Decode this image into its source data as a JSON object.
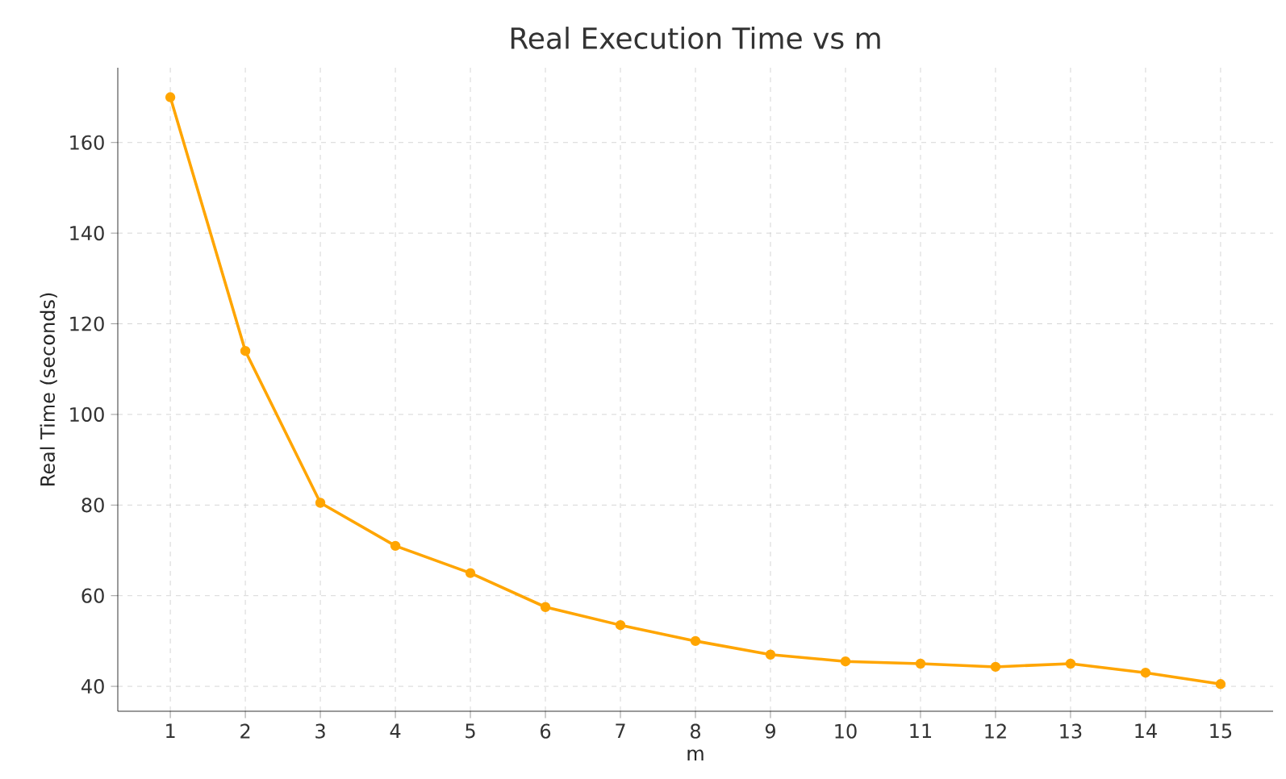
{
  "chart_data": {
    "type": "line",
    "title": "Real Execution Time vs m",
    "xlabel": "m",
    "ylabel": "Real Time (seconds)",
    "x": [
      1,
      2,
      3,
      4,
      5,
      6,
      7,
      8,
      9,
      10,
      11,
      12,
      13,
      14,
      15
    ],
    "series": [
      {
        "color": "#ffa500",
        "values": [
          170,
          114,
          80.5,
          71,
          65,
          57.5,
          53.5,
          50,
          47,
          45.5,
          45,
          44.3,
          45,
          43,
          40.5
        ]
      }
    ],
    "xlim": [
      0.3,
      15.7
    ],
    "ylim": [
      34.5,
      176.5
    ],
    "xticks": [
      1,
      2,
      3,
      4,
      5,
      6,
      7,
      8,
      9,
      10,
      11,
      12,
      13,
      14,
      15
    ],
    "yticks": [
      40,
      60,
      80,
      100,
      120,
      140,
      160
    ],
    "grid": true,
    "marker": "circle",
    "line_style": "solid"
  }
}
